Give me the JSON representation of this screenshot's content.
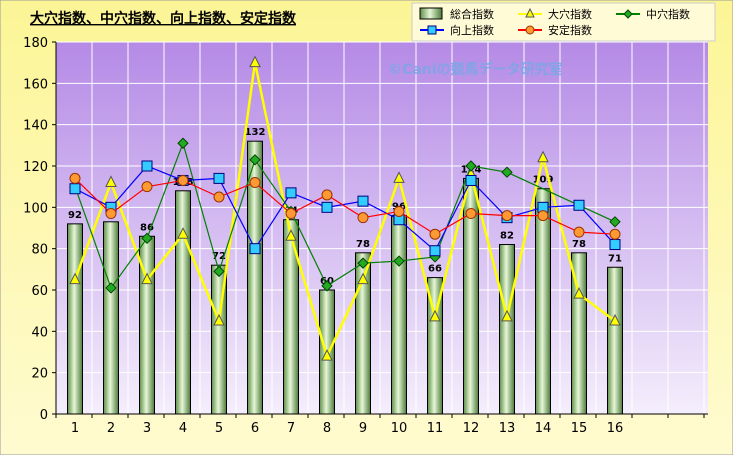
{
  "chart_data": {
    "type": "bar",
    "title": "大穴指数、中穴指数、向上指数、安定指数",
    "watermark": "©Caniの競馬データ研究室",
    "categories": [
      "1",
      "2",
      "3",
      "4",
      "5",
      "6",
      "7",
      "8",
      "9",
      "10",
      "11",
      "12",
      "13",
      "14",
      "15",
      "16"
    ],
    "ylim": [
      0,
      180
    ],
    "yticks": [
      0,
      20,
      40,
      60,
      80,
      100,
      120,
      140,
      160,
      180
    ],
    "grid": true,
    "legend_position": "top-right",
    "series": [
      {
        "name": "総合指数",
        "kind": "bar",
        "color": "#b9dc9c",
        "values": [
          92,
          93,
          86,
          108,
          72,
          132,
          94,
          60,
          78,
          96,
          66,
          114,
          82,
          109,
          78,
          71
        ],
        "labels": [
          "92",
          "",
          "86",
          "108",
          "72",
          "132",
          "94",
          "60",
          "78",
          "96",
          "66",
          "114",
          "82",
          "109",
          "78",
          "71"
        ]
      },
      {
        "name": "大穴指数",
        "kind": "line",
        "color": "#ffff00",
        "marker": "triangle",
        "values": [
          65,
          112,
          65,
          87,
          45,
          170,
          86,
          28,
          65,
          114,
          47,
          116,
          47,
          124,
          58,
          45
        ]
      },
      {
        "name": "中穴指数",
        "kind": "line",
        "color": "#008000",
        "marker": "diamond",
        "values": [
          110,
          61,
          85,
          131,
          69,
          123,
          98,
          62,
          73,
          74,
          76,
          120,
          117,
          null,
          null,
          93
        ]
      },
      {
        "name": "向上指数",
        "kind": "line",
        "color": "#0000ff",
        "marker": "square",
        "values": [
          109,
          100,
          120,
          113,
          114,
          80,
          107,
          100,
          103,
          94,
          79,
          113,
          95,
          100,
          101,
          82
        ]
      },
      {
        "name": "安定指数",
        "kind": "line",
        "color": "#ff0000",
        "marker": "circle",
        "values": [
          114,
          97,
          110,
          113,
          105,
          112,
          97,
          106,
          95,
          98,
          87,
          97,
          96,
          96,
          88,
          87
        ]
      }
    ]
  }
}
